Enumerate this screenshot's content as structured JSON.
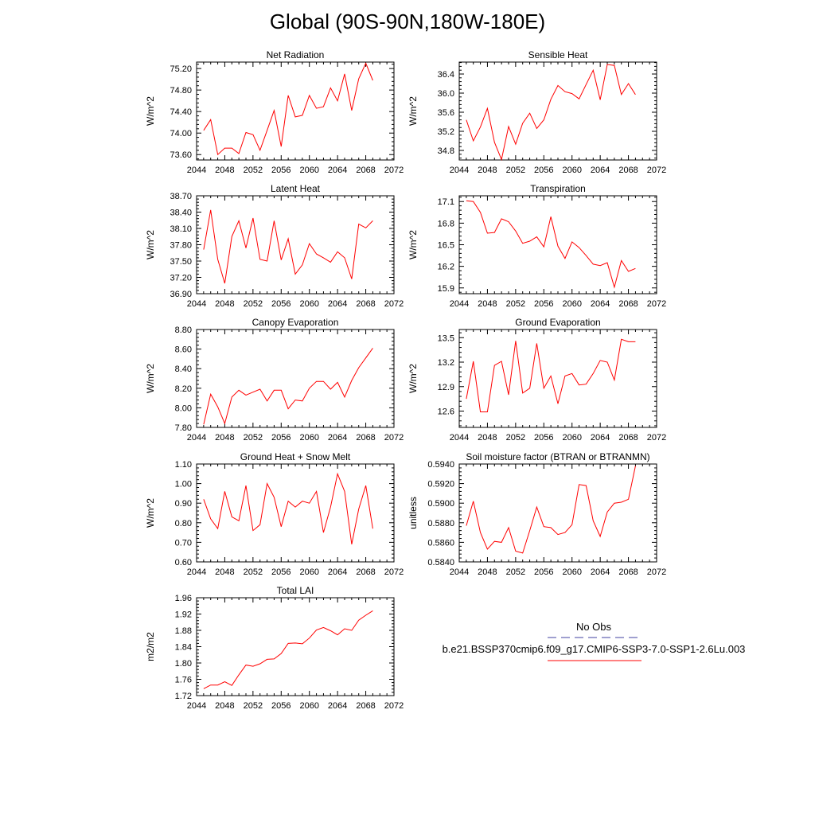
{
  "figure": {
    "title": "Global (90S-90N,180W-180E)",
    "series_color": "#ff0000",
    "obs_color": "#4040a0"
  },
  "legend": {
    "obs_label": "No Obs",
    "model_label": "b.e21.BSSP370cmip6.f09_g17.CMIP6-SSP3-7.0-SSP1-2.6Lu.003"
  },
  "chart_data": [
    {
      "type": "line",
      "title": "Net Radiation",
      "ylabel": "W/m^2",
      "xlim": [
        2044,
        2072
      ],
      "ylim": [
        73.5,
        75.32
      ],
      "xticks": [
        "2044",
        "2048",
        "2052",
        "2056",
        "2060",
        "2064",
        "2068",
        "2072"
      ],
      "yticks": [
        "73.60",
        "74.00",
        "74.40",
        "74.80",
        "75.20"
      ],
      "x": [
        2045,
        2046,
        2047,
        2048,
        2049,
        2050,
        2051,
        2052,
        2053,
        2054,
        2055,
        2056,
        2057,
        2058,
        2059,
        2060,
        2061,
        2062,
        2063,
        2064,
        2065,
        2066,
        2067,
        2068,
        2069
      ],
      "series": [
        {
          "values": [
            74.05,
            74.25,
            73.6,
            73.72,
            73.72,
            73.62,
            74.01,
            73.97,
            73.68,
            74.05,
            74.42,
            73.75,
            74.7,
            74.3,
            74.33,
            74.7,
            74.46,
            74.49,
            74.84,
            74.6,
            75.1,
            74.42,
            75.01,
            75.3,
            74.98
          ]
        }
      ]
    },
    {
      "type": "line",
      "title": "Sensible Heat",
      "ylabel": "W/m^2",
      "xlim": [
        2044,
        2072
      ],
      "ylim": [
        34.6,
        36.65
      ],
      "xticks": [
        "2044",
        "2048",
        "2052",
        "2056",
        "2060",
        "2064",
        "2068",
        "2072"
      ],
      "yticks": [
        "34.8",
        "35.2",
        "35.6",
        "36.0",
        "36.4"
      ],
      "x": [
        2045,
        2046,
        2047,
        2048,
        2049,
        2050,
        2051,
        2052,
        2053,
        2054,
        2055,
        2056,
        2057,
        2058,
        2059,
        2060,
        2061,
        2062,
        2063,
        2064,
        2065,
        2066,
        2067,
        2068,
        2069
      ],
      "series": [
        {
          "values": [
            35.44,
            35.0,
            35.29,
            35.68,
            34.97,
            34.61,
            35.3,
            34.93,
            35.37,
            35.58,
            35.26,
            35.44,
            35.87,
            36.16,
            36.03,
            35.99,
            35.88,
            36.18,
            36.48,
            35.86,
            36.6,
            36.58,
            35.97,
            36.2,
            35.97
          ]
        }
      ]
    },
    {
      "type": "line",
      "title": "Latent Heat",
      "ylabel": "W/m^2",
      "xlim": [
        2044,
        2072
      ],
      "ylim": [
        36.9,
        38.7
      ],
      "xticks": [
        "2044",
        "2048",
        "2052",
        "2056",
        "2060",
        "2064",
        "2068",
        "2072"
      ],
      "yticks": [
        "36.90",
        "37.20",
        "37.50",
        "37.80",
        "38.10",
        "38.40",
        "38.70"
      ],
      "x": [
        2045,
        2046,
        2047,
        2048,
        2049,
        2050,
        2051,
        2052,
        2053,
        2054,
        2055,
        2056,
        2057,
        2058,
        2059,
        2060,
        2061,
        2062,
        2063,
        2064,
        2065,
        2066,
        2067,
        2068,
        2069
      ],
      "series": [
        {
          "values": [
            37.71,
            38.44,
            37.53,
            37.09,
            37.95,
            38.24,
            37.74,
            38.29,
            37.53,
            37.5,
            38.24,
            37.52,
            37.91,
            37.26,
            37.43,
            37.82,
            37.63,
            37.56,
            37.48,
            37.67,
            37.56,
            37.17,
            38.18,
            38.11,
            38.24
          ]
        }
      ]
    },
    {
      "type": "line",
      "title": "Transpiration",
      "ylabel": "W/m^2",
      "xlim": [
        2044,
        2072
      ],
      "ylim": [
        15.82,
        17.18
      ],
      "xticks": [
        "2044",
        "2048",
        "2052",
        "2056",
        "2060",
        "2064",
        "2068",
        "2072"
      ],
      "yticks": [
        "15.9",
        "16.2",
        "16.5",
        "16.8",
        "17.1"
      ],
      "x": [
        2045,
        2046,
        2047,
        2048,
        2049,
        2050,
        2051,
        2052,
        2053,
        2054,
        2055,
        2056,
        2057,
        2058,
        2059,
        2060,
        2061,
        2062,
        2063,
        2064,
        2065,
        2066,
        2067,
        2068,
        2069
      ],
      "series": [
        {
          "values": [
            17.11,
            17.1,
            16.95,
            16.66,
            16.67,
            16.86,
            16.82,
            16.69,
            16.52,
            16.55,
            16.61,
            16.47,
            16.89,
            16.48,
            16.31,
            16.54,
            16.46,
            16.35,
            16.23,
            16.21,
            16.25,
            15.91,
            16.28,
            16.13,
            16.17
          ]
        }
      ]
    },
    {
      "type": "line",
      "title": "Canopy Evaporation",
      "ylabel": "W/m^2",
      "xlim": [
        2044,
        2072
      ],
      "ylim": [
        7.8,
        8.8
      ],
      "xticks": [
        "2044",
        "2048",
        "2052",
        "2056",
        "2060",
        "2064",
        "2068",
        "2072"
      ],
      "yticks": [
        "7.80",
        "8.00",
        "8.20",
        "8.40",
        "8.60",
        "8.80"
      ],
      "x": [
        2045,
        2046,
        2047,
        2048,
        2049,
        2050,
        2051,
        2052,
        2053,
        2054,
        2055,
        2056,
        2057,
        2058,
        2059,
        2060,
        2061,
        2062,
        2063,
        2064,
        2065,
        2066,
        2067,
        2068,
        2069
      ],
      "series": [
        {
          "values": [
            7.83,
            8.14,
            8.01,
            7.84,
            8.11,
            8.18,
            8.13,
            8.16,
            8.19,
            8.07,
            8.18,
            8.18,
            7.99,
            8.08,
            8.07,
            8.2,
            8.27,
            8.27,
            8.19,
            8.26,
            8.11,
            8.28,
            8.41,
            8.51,
            8.61
          ]
        }
      ]
    },
    {
      "type": "line",
      "title": "Ground Evaporation",
      "ylabel": "W/m^2",
      "xlim": [
        2044,
        2072
      ],
      "ylim": [
        12.4,
        13.6
      ],
      "xticks": [
        "2044",
        "2048",
        "2052",
        "2056",
        "2060",
        "2064",
        "2068",
        "2072"
      ],
      "yticks": [
        "12.6",
        "12.9",
        "13.2",
        "13.5"
      ],
      "x": [
        2045,
        2046,
        2047,
        2048,
        2049,
        2050,
        2051,
        2052,
        2053,
        2054,
        2055,
        2056,
        2057,
        2058,
        2059,
        2060,
        2061,
        2062,
        2063,
        2064,
        2065,
        2066,
        2067,
        2068,
        2069
      ],
      "series": [
        {
          "values": [
            12.75,
            13.21,
            12.59,
            12.59,
            13.16,
            13.21,
            12.8,
            13.46,
            12.82,
            12.88,
            13.43,
            12.88,
            13.03,
            12.69,
            13.03,
            13.06,
            12.92,
            12.93,
            13.06,
            13.22,
            13.2,
            12.98,
            13.48,
            13.45,
            13.45
          ]
        }
      ]
    },
    {
      "type": "line",
      "title": "Ground Heat + Snow Melt",
      "ylabel": "W/m^2",
      "xlim": [
        2044,
        2072
      ],
      "ylim": [
        0.6,
        1.1
      ],
      "xticks": [
        "2044",
        "2048",
        "2052",
        "2056",
        "2060",
        "2064",
        "2068",
        "2072"
      ],
      "yticks": [
        "0.60",
        "0.70",
        "0.80",
        "0.90",
        "1.00",
        "1.10"
      ],
      "x": [
        2045,
        2046,
        2047,
        2048,
        2049,
        2050,
        2051,
        2052,
        2053,
        2054,
        2055,
        2056,
        2057,
        2058,
        2059,
        2060,
        2061,
        2062,
        2063,
        2064,
        2065,
        2066,
        2067,
        2068,
        2069
      ],
      "series": [
        {
          "values": [
            0.92,
            0.82,
            0.77,
            0.96,
            0.83,
            0.81,
            0.99,
            0.76,
            0.79,
            1.0,
            0.93,
            0.78,
            0.91,
            0.88,
            0.91,
            0.9,
            0.96,
            0.75,
            0.88,
            1.05,
            0.96,
            0.69,
            0.87,
            0.99,
            0.77
          ]
        }
      ]
    },
    {
      "type": "line",
      "title": "Soil moisture factor (BTRAN or BTRANMN)",
      "ylabel": "unitless",
      "xlim": [
        2044,
        2072
      ],
      "ylim": [
        0.584,
        0.594
      ],
      "xticks": [
        "2044",
        "2048",
        "2052",
        "2056",
        "2060",
        "2064",
        "2068",
        "2072"
      ],
      "yticks": [
        "0.5840",
        "0.5860",
        "0.5880",
        "0.5900",
        "0.5920",
        "0.5940"
      ],
      "x": [
        2045,
        2046,
        2047,
        2048,
        2049,
        2050,
        2051,
        2052,
        2053,
        2054,
        2055,
        2056,
        2057,
        2058,
        2059,
        2060,
        2061,
        2062,
        2063,
        2064,
        2065,
        2066,
        2067,
        2068,
        2069
      ],
      "series": [
        {
          "values": [
            0.5877,
            0.5902,
            0.587,
            0.5853,
            0.5861,
            0.586,
            0.5875,
            0.5851,
            0.5849,
            0.5872,
            0.5896,
            0.5876,
            0.5875,
            0.5868,
            0.587,
            0.5878,
            0.5919,
            0.5918,
            0.5882,
            0.5866,
            0.5891,
            0.59,
            0.5901,
            0.5904,
            0.5938
          ]
        }
      ]
    },
    {
      "type": "line",
      "title": "Total LAI",
      "ylabel": "m2/m2",
      "xlim": [
        2044,
        2072
      ],
      "ylim": [
        1.72,
        1.96
      ],
      "xticks": [
        "2044",
        "2048",
        "2052",
        "2056",
        "2060",
        "2064",
        "2068",
        "2072"
      ],
      "yticks": [
        "1.72",
        "1.76",
        "1.80",
        "1.84",
        "1.88",
        "1.92",
        "1.96"
      ],
      "x": [
        2045,
        2046,
        2047,
        2048,
        2049,
        2050,
        2051,
        2052,
        2053,
        2054,
        2055,
        2056,
        2057,
        2058,
        2059,
        2060,
        2061,
        2062,
        2063,
        2064,
        2065,
        2066,
        2067,
        2068,
        2069
      ],
      "series": [
        {
          "values": [
            1.737,
            1.746,
            1.746,
            1.754,
            1.745,
            1.771,
            1.795,
            1.792,
            1.798,
            1.809,
            1.81,
            1.823,
            1.848,
            1.849,
            1.847,
            1.861,
            1.881,
            1.887,
            1.879,
            1.869,
            1.884,
            1.88,
            1.905,
            1.917,
            1.928
          ]
        }
      ]
    }
  ]
}
